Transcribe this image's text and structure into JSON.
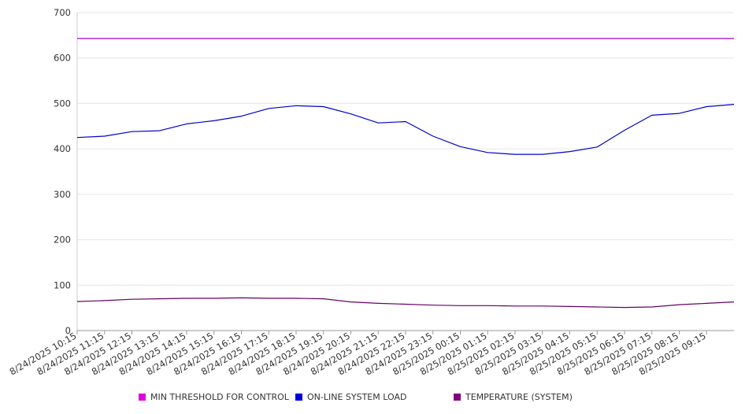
{
  "chart_data": {
    "type": "line",
    "ylim": [
      0,
      700
    ],
    "y_ticks": [
      0,
      100,
      200,
      300,
      400,
      500,
      600,
      700
    ],
    "x_tick_labels": [
      "8/24/2025 10:15",
      "8/24/2025 11:15",
      "8/24/2025 12:15",
      "8/24/2025 13:15",
      "8/24/2025 14:15",
      "8/24/2025 15:15",
      "8/24/2025 16:15",
      "8/24/2025 17:15",
      "8/24/2025 18:15",
      "8/24/2025 19:15",
      "8/24/2025 20:15",
      "8/24/2025 21:15",
      "8/24/2025 22:15",
      "8/24/2025 23:15",
      "8/25/2025 00:15",
      "8/25/2025 01:15",
      "8/25/2025 02:15",
      "8/25/2025 03:15",
      "8/25/2025 04:15",
      "8/25/2025 05:15",
      "8/25/2025 06:15",
      "8/25/2025 07:15",
      "8/25/2025 08:15",
      "8/25/2025 09:15"
    ],
    "grid": true,
    "legend_position": "bottom",
    "series": [
      {
        "name": "MIN THRESHOLD FOR CONTROL",
        "color": "#aa00cc",
        "legend_color": "#e000e0",
        "values": [
          643,
          643,
          643,
          643,
          643,
          643,
          643,
          643,
          643,
          643,
          643,
          643,
          643,
          643,
          643,
          643,
          643,
          643,
          643,
          643,
          643,
          643,
          643,
          643,
          643
        ]
      },
      {
        "name": "ON-LINE SYSTEM LOAD",
        "color": "#0000cc",
        "legend_color": "#0000e0",
        "values": [
          425,
          428,
          438,
          440,
          455,
          462,
          472,
          489,
          495,
          493,
          477,
          457,
          460,
          428,
          405,
          392,
          388,
          388,
          394,
          404,
          441,
          474,
          478,
          493,
          498
        ]
      },
      {
        "name": "TEMPERATURE (SYSTEM)",
        "color": "#660066",
        "legend_color": "#800080",
        "values": [
          64,
          66,
          69,
          70,
          71,
          71,
          72,
          71,
          71,
          70,
          63,
          60,
          58,
          56,
          55,
          55,
          54,
          54,
          53,
          52,
          51,
          52,
          57,
          60,
          63
        ]
      }
    ]
  }
}
